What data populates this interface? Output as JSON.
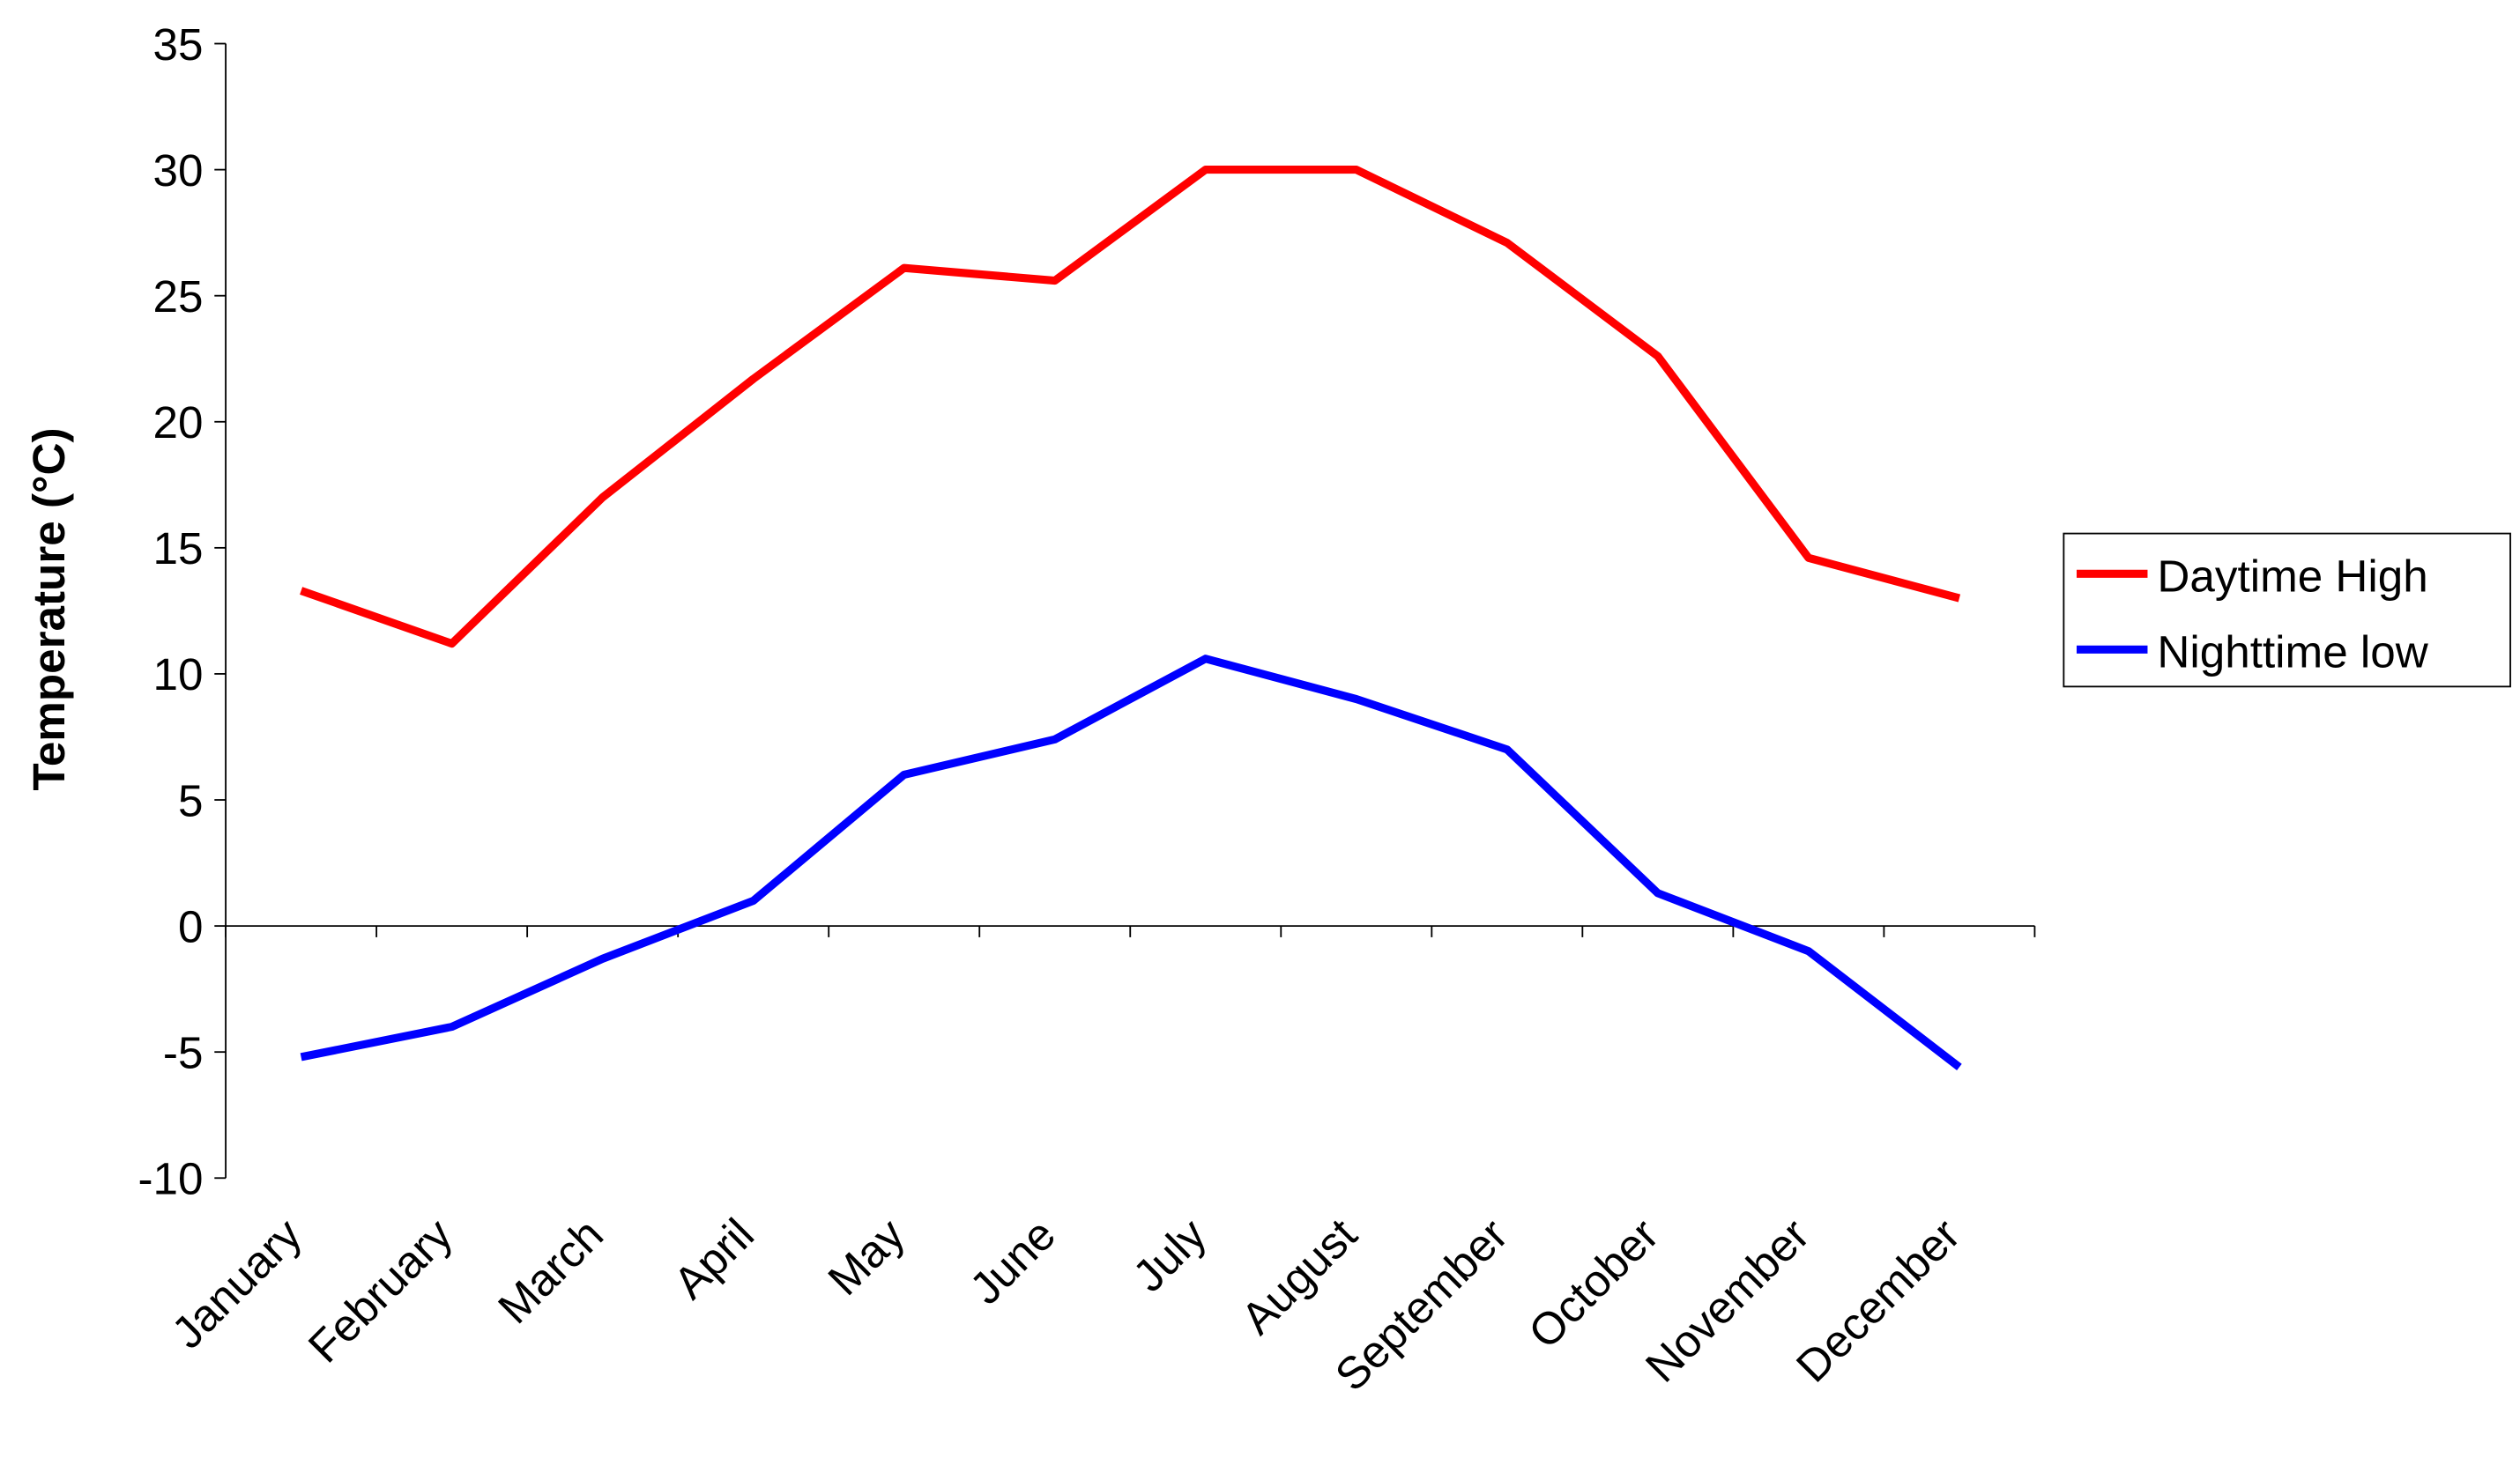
{
  "chart_data": {
    "type": "line",
    "y_label": "Temperature (°C)",
    "categories": [
      "January",
      "February",
      "March",
      "April",
      "May",
      "June",
      "July",
      "August",
      "September",
      "October",
      "November",
      "December"
    ],
    "series": [
      {
        "name": "Daytime High",
        "color": "#ff0000",
        "values": [
          13.3,
          11.2,
          17.0,
          21.7,
          26.1,
          25.6,
          30.0,
          30.0,
          27.1,
          22.6,
          14.6,
          13.0
        ]
      },
      {
        "name": "Nighttime low",
        "color": "#0000ff",
        "values": [
          -5.2,
          -4.0,
          -1.3,
          1.0,
          6.0,
          7.4,
          10.6,
          9.0,
          7.0,
          1.3,
          -1.0,
          -5.6
        ]
      }
    ],
    "ylim": [
      -10,
      35
    ],
    "yticks": [
      -10,
      -5,
      0,
      5,
      10,
      15,
      20,
      25,
      30,
      35
    ],
    "legend": "right"
  }
}
